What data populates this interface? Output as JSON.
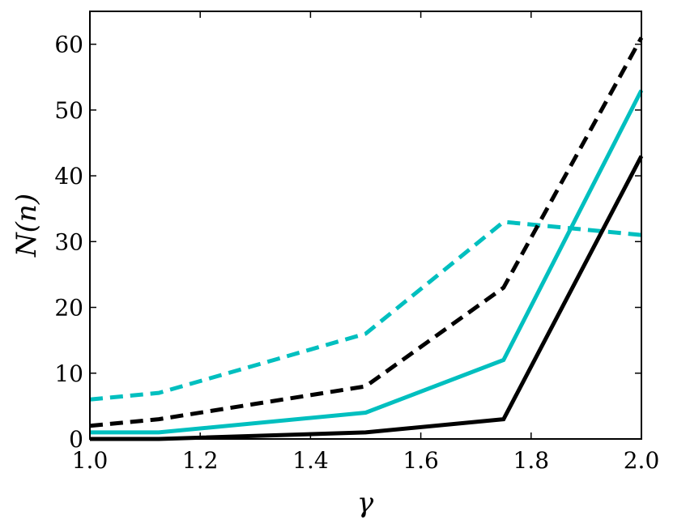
{
  "chart_data": {
    "type": "line",
    "xlabel": "γ",
    "ylabel": "N(n)",
    "xlim": [
      1.0,
      2.0
    ],
    "ylim": [
      0,
      65
    ],
    "xticks": [
      "1.0",
      "1.2",
      "1.4",
      "1.6",
      "1.8",
      "2.0"
    ],
    "yticks": [
      "0",
      "10",
      "20",
      "30",
      "40",
      "50",
      "60"
    ],
    "legend": "none",
    "grid": false,
    "x": [
      1.0,
      1.125,
      1.5,
      1.75,
      2.0
    ],
    "series": [
      {
        "color": "#00bfbf",
        "style": "dashed",
        "values": [
          6,
          7,
          16,
          33,
          31
        ]
      },
      {
        "color": "#000000",
        "style": "dashed",
        "values": [
          2,
          3,
          8,
          23,
          61
        ]
      },
      {
        "color": "#00bfbf",
        "style": "solid",
        "values": [
          1,
          1,
          4,
          12,
          53
        ]
      },
      {
        "color": "#000000",
        "style": "solid",
        "values": [
          0,
          0,
          1,
          3,
          43
        ]
      }
    ]
  }
}
